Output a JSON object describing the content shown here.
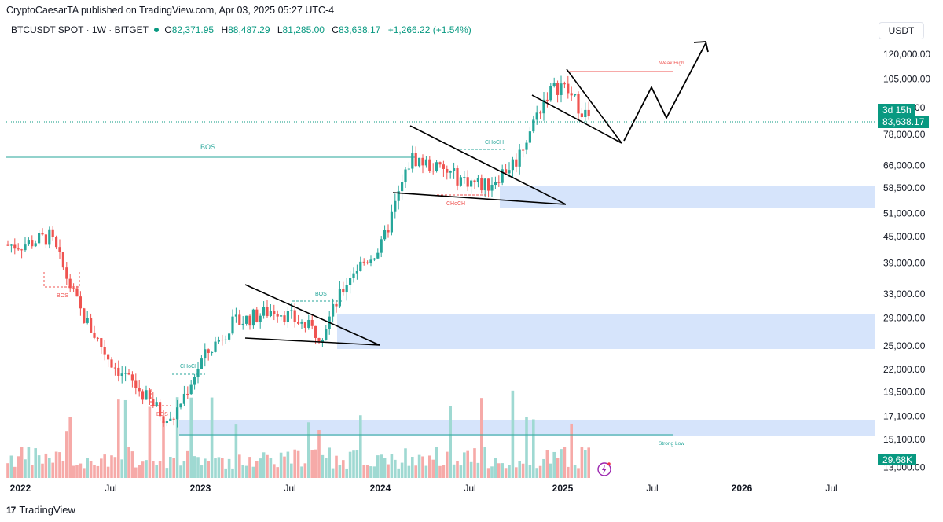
{
  "header": {
    "published": "CryptoCaesarTA published on TradingView.com, Apr 03, 2025 05:27 UTC-4",
    "symbol": "BTCUSDT SPOT · 1W · BITGET",
    "open_label": "O",
    "open": "82,371.95",
    "high_label": "H",
    "high": "88,487.29",
    "low_label": "L",
    "low": "81,285.00",
    "close_label": "C",
    "close": "83,638.17",
    "change": "+1,266.22 (+1.54%)"
  },
  "currency_button": "USDT",
  "footer": {
    "brand": "TradingView",
    "logo_text": "17"
  },
  "colors": {
    "up": "#26a69a",
    "down": "#ef5350",
    "zone": "#d6e4fb",
    "price_line": "#089981",
    "bos": "#26a69a",
    "bos_down": "#ef5350"
  },
  "chart_data": {
    "type": "candlestick",
    "symbol": "BTCUSDT",
    "timeframe": "1W",
    "y_scale": "log",
    "y_ticks": [
      "120,000.00",
      "105,000.00",
      "90,000.00",
      "78,000.00",
      "66,000.00",
      "58,500.00",
      "51,000.00",
      "45,000.00",
      "39,000.00",
      "33,000.00",
      "29,000.00",
      "25,000.00",
      "22,000.00",
      "19,500.00",
      "17,100.00",
      "15,100.00",
      "13,000.00"
    ],
    "x_ticks": [
      "2022",
      "Jul",
      "2023",
      "Jul",
      "2024",
      "Jul",
      "2025",
      "Jul",
      "2026",
      "Jul"
    ],
    "last_price": {
      "value": "83,638.17",
      "countdown": "3d 15h"
    },
    "volume_label": "29.68K",
    "close_series_approx": [
      {
        "t": "2022-01",
        "c": 43000
      },
      {
        "t": "2022-03",
        "c": 45000
      },
      {
        "t": "2022-05",
        "c": 30000
      },
      {
        "t": "2022-07",
        "c": 23000
      },
      {
        "t": "2022-09",
        "c": 19500
      },
      {
        "t": "2022-11",
        "c": 16500
      },
      {
        "t": "2023-01",
        "c": 23000
      },
      {
        "t": "2023-03",
        "c": 28000
      },
      {
        "t": "2023-06",
        "c": 30500
      },
      {
        "t": "2023-09",
        "c": 26500
      },
      {
        "t": "2023-11",
        "c": 37000
      },
      {
        "t": "2024-01",
        "c": 42500
      },
      {
        "t": "2024-03",
        "c": 69000
      },
      {
        "t": "2024-06",
        "c": 62000
      },
      {
        "t": "2024-08",
        "c": 59000
      },
      {
        "t": "2024-10",
        "c": 68000
      },
      {
        "t": "2024-12",
        "c": 97000
      },
      {
        "t": "2025-01",
        "c": 102000
      },
      {
        "t": "2025-03",
        "c": 83638
      }
    ],
    "annotations": [
      {
        "text": "BOS",
        "kind": "bos"
      },
      {
        "text": "BOS",
        "kind": "bos_down"
      },
      {
        "text": "BOS",
        "kind": "bos_down"
      },
      {
        "text": "BOS",
        "kind": "bos"
      },
      {
        "text": "CHoCH",
        "kind": "choch"
      },
      {
        "text": "CHoCH",
        "kind": "choch"
      },
      {
        "text": "CHoCH",
        "kind": "choch_down"
      },
      {
        "text": "Weak High",
        "kind": "weak_high"
      },
      {
        "text": "Strong Low",
        "kind": "strong_low"
      }
    ]
  }
}
